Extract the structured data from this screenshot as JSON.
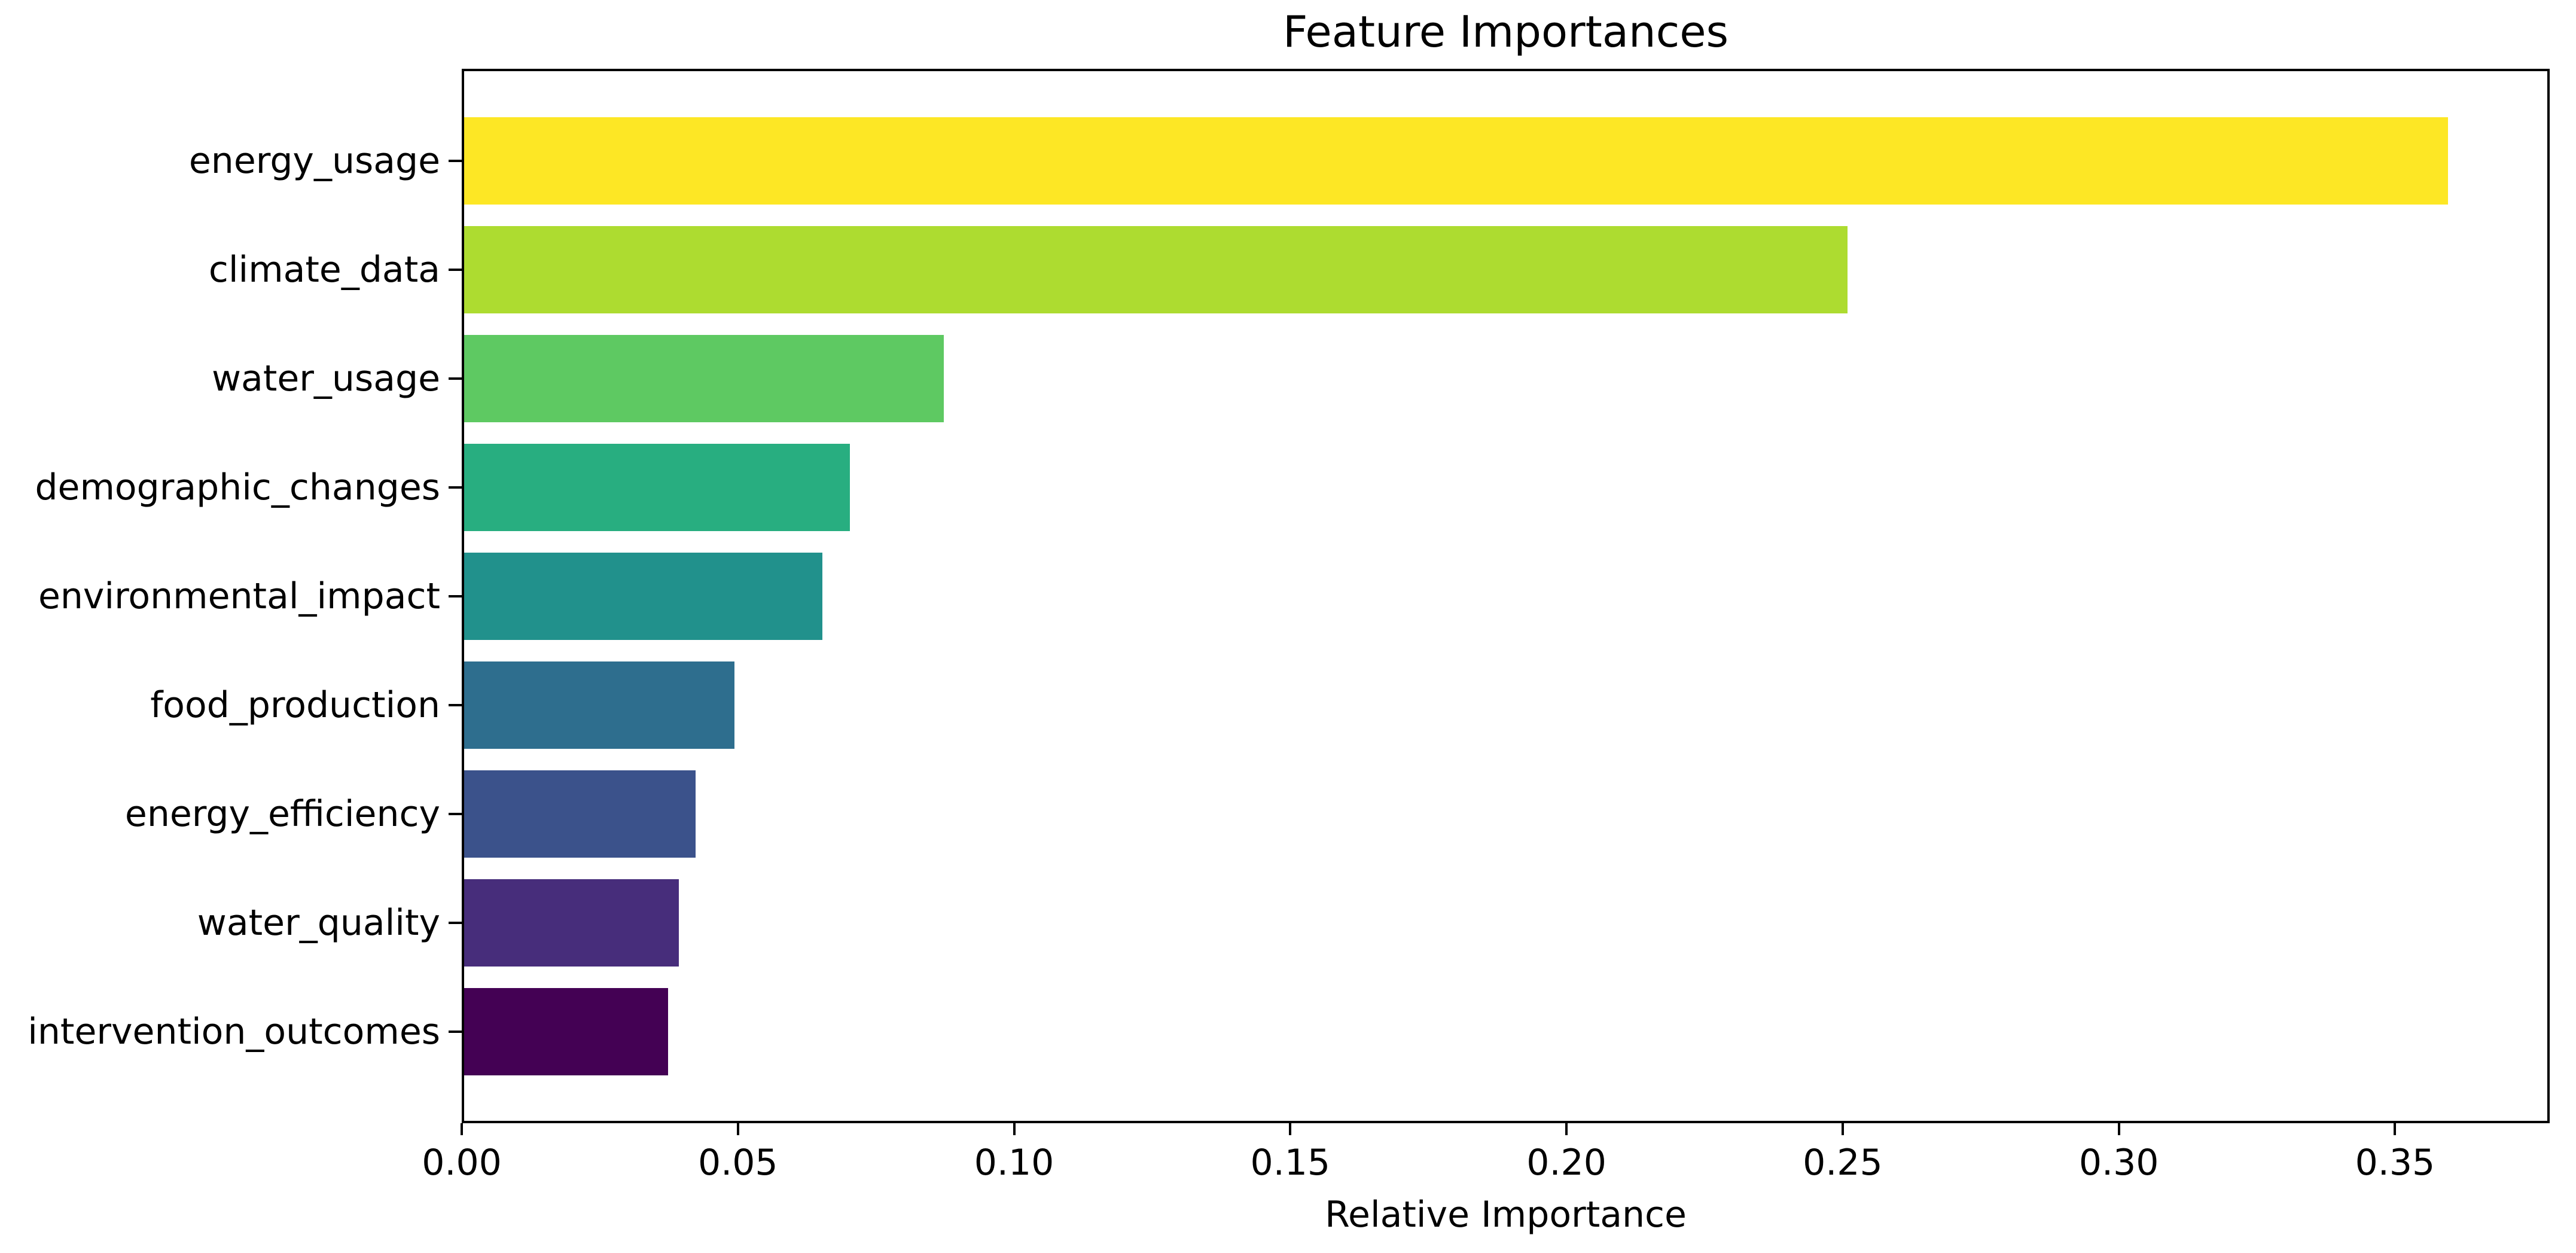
{
  "chart_data": {
    "type": "bar",
    "orientation": "horizontal",
    "title": "Feature Importances",
    "xlabel": "Relative Importance",
    "ylabel": "",
    "categories": [
      "energy_usage",
      "climate_data",
      "water_usage",
      "demographic_changes",
      "environmental_impact",
      "food_production",
      "energy_efficiency",
      "water_quality",
      "intervention_outcomes"
    ],
    "values": [
      0.36,
      0.251,
      0.087,
      0.07,
      0.065,
      0.049,
      0.042,
      0.039,
      0.037
    ],
    "bar_colors": [
      "#fde725",
      "#addc30",
      "#5ec962",
      "#28ae80",
      "#21918c",
      "#2e6e8e",
      "#3b528b",
      "#472d7b",
      "#440154"
    ],
    "colormap": "viridis",
    "x_ticks": [
      "0.00",
      "0.05",
      "0.10",
      "0.15",
      "0.20",
      "0.25",
      "0.30",
      "0.35"
    ],
    "x_tick_values": [
      0.0,
      0.05,
      0.1,
      0.15,
      0.2,
      0.25,
      0.3,
      0.35
    ],
    "xlim": [
      0,
      0.378
    ],
    "grid": false,
    "legend": "none",
    "background_color": "#ffffff",
    "axis_color": "#000000"
  }
}
